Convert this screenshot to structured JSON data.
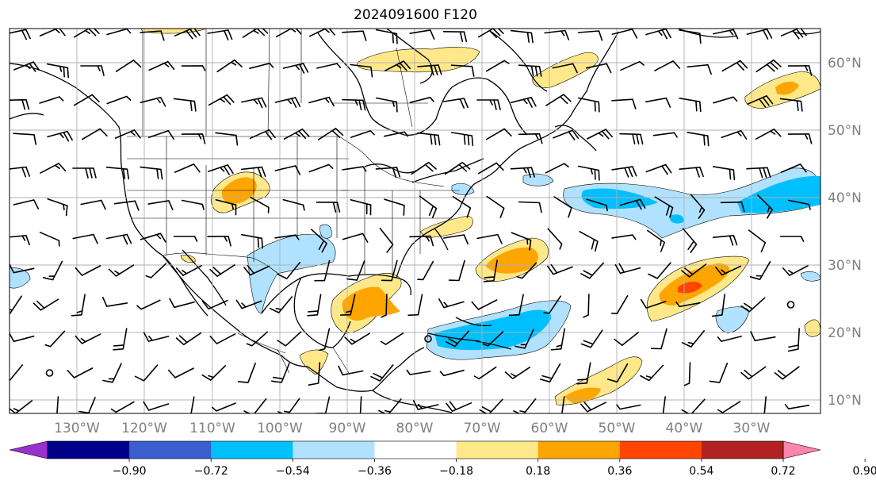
{
  "title": "2024091600 F120",
  "map": {
    "lon_labels": [
      "130°W",
      "120°W",
      "110°W",
      "100°W",
      "90°W",
      "80°W",
      "70°W",
      "60°W",
      "50°W",
      "40°W",
      "30°W"
    ],
    "lat_labels": [
      "60°N",
      "50°N",
      "40°N",
      "30°N",
      "20°N",
      "10°N"
    ],
    "gridlines": true
  },
  "colorbar": {
    "ticks": [
      "−0.90",
      "−0.72",
      "−0.54",
      "−0.36",
      "−0.18",
      "0.18",
      "0.36",
      "0.54",
      "0.72",
      "0.90"
    ],
    "colors": [
      "#9932cc",
      "#00008b",
      "#3a5fcd",
      "#00bfff",
      "#b0e2ff",
      "#ffffff",
      "#ffe88a",
      "#ffa500",
      "#ff4500",
      "#b22222",
      "#ff85b0"
    ],
    "extend": "both"
  },
  "colors": {
    "neg_light": "#b0e2ff",
    "neg_mid": "#00bfff",
    "pos_light": "#ffe88a",
    "pos_mid": "#ffa500",
    "pos_high": "#ff4500"
  }
}
